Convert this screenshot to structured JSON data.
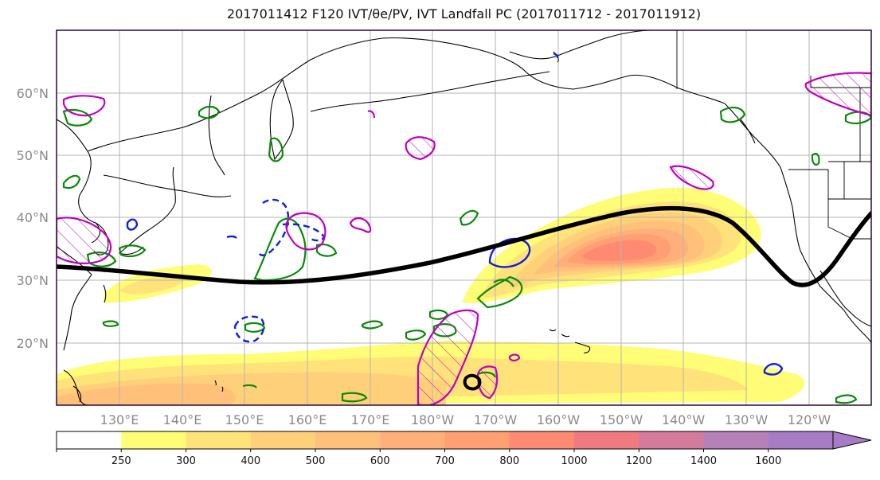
{
  "title": "2017011412 F120 IVT/θe/PV, IVT Landfall PC (2017011712 - 2017011912)",
  "map": {
    "lat_labels": [
      "60°N",
      "50°N",
      "40°N",
      "30°N",
      "20°N"
    ],
    "lon_labels": [
      "130°E",
      "140°E",
      "150°E",
      "160°E",
      "170°E",
      "180°W",
      "170°W",
      "160°W",
      "150°W",
      "140°W",
      "130°W",
      "120°W"
    ],
    "lon_range": [
      120,
      250
    ],
    "lat_range": [
      10,
      70
    ],
    "grid": true
  },
  "colorbar": {
    "levels": [
      "250",
      "300",
      "400",
      "500",
      "600",
      "700",
      "800",
      "1000",
      "1200",
      "1400",
      "1600"
    ],
    "colors": [
      "#ffffff",
      "#fffd75",
      "#ffe27a",
      "#ffd07a",
      "#ffc07a",
      "#ffb07a",
      "#ff9f72",
      "#ff8a72",
      "#f07a80",
      "#d47b9c",
      "#b680b8",
      "#a77cc4"
    ]
  }
}
